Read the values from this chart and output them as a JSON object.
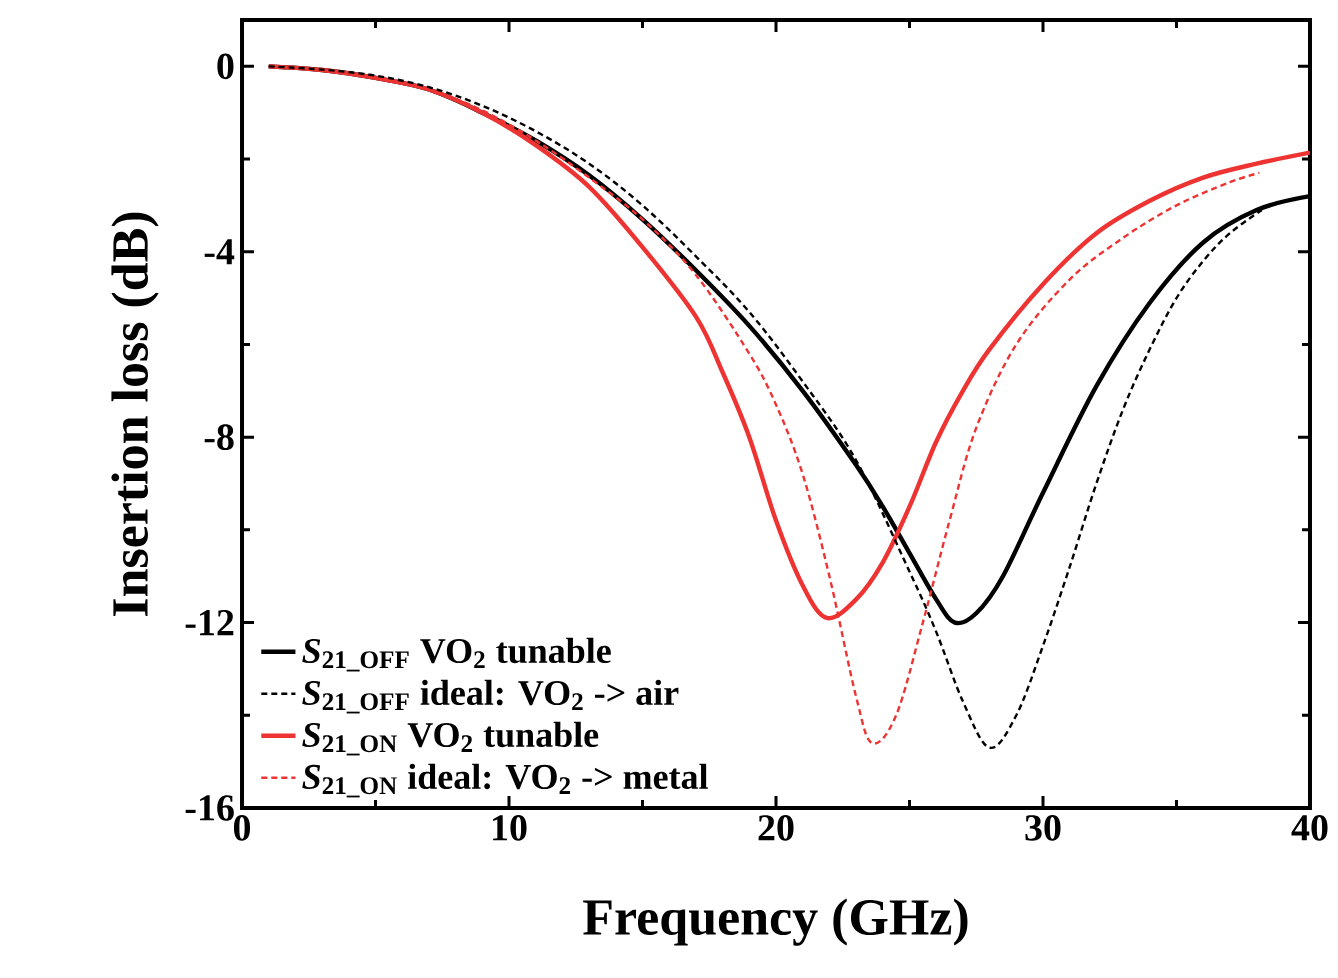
{
  "chart_data": {
    "type": "line",
    "xlabel": "Frequency (GHz)",
    "ylabel": "Insertion loss (dB)",
    "xlim": [
      0,
      40
    ],
    "ylim": [
      -16,
      1
    ],
    "xticks": [
      0,
      10,
      20,
      30,
      40
    ],
    "yticks": [
      -16,
      -12,
      -8,
      -4,
      0
    ],
    "legend": "bottom left",
    "series": [
      {
        "name": "*S*$_{21_OFF}$ VO$_{2}$ tunable",
        "color": "#000000",
        "line_style": "solid",
        "x": [
          1,
          3,
          5,
          7,
          9,
          11,
          13,
          15,
          17,
          19,
          21,
          23,
          24,
          25,
          26,
          26.7,
          27.5,
          28.5,
          30,
          32,
          34,
          36,
          38,
          40
        ],
        "values": [
          0,
          -0.08,
          -0.25,
          -0.5,
          -1.0,
          -1.6,
          -2.35,
          -3.3,
          -4.4,
          -5.6,
          -7.0,
          -8.6,
          -9.5,
          -10.5,
          -11.5,
          -12.0,
          -11.8,
          -11.0,
          -9.2,
          -6.9,
          -5.1,
          -3.8,
          -3.1,
          -2.8
        ]
      },
      {
        "name": "*S*$_{21_OFF}$ ideal: VO$_{2}$ -> air",
        "color": "#000000",
        "line_style": "dashed",
        "x": [
          1,
          3,
          5,
          7,
          9,
          11,
          13,
          15,
          17,
          19,
          21,
          23,
          25,
          26,
          27,
          28,
          29,
          30,
          31,
          32,
          33,
          34,
          35,
          36,
          37,
          38.2
        ],
        "values": [
          0,
          -0.07,
          -0.2,
          -0.45,
          -0.85,
          -1.4,
          -2.1,
          -3.0,
          -4.1,
          -5.3,
          -6.8,
          -8.5,
          -10.9,
          -12.2,
          -13.7,
          -14.7,
          -14.0,
          -12.5,
          -10.8,
          -9.0,
          -7.4,
          -6.1,
          -5.0,
          -4.2,
          -3.6,
          -3.1
        ]
      },
      {
        "name": "*S*$_{21_ON}$ VO$_{2}$ tunable",
        "color": "#ee3333",
        "line_style": "solid",
        "x": [
          1,
          3,
          5,
          7,
          9,
          11,
          13,
          15,
          17,
          18,
          19,
          20,
          21,
          21.9,
          23,
          24,
          25,
          26,
          27,
          28,
          30,
          32,
          34,
          36,
          38,
          40
        ],
        "values": [
          0,
          -0.08,
          -0.25,
          -0.5,
          -1.0,
          -1.7,
          -2.6,
          -3.9,
          -5.4,
          -6.6,
          -8.0,
          -9.8,
          -11.2,
          -11.9,
          -11.5,
          -10.7,
          -9.5,
          -8.1,
          -7.0,
          -6.1,
          -4.7,
          -3.6,
          -2.9,
          -2.4,
          -2.1,
          -1.86
        ]
      },
      {
        "name": "*S*$_{21_ON}$ ideal: VO$_{2}$ -> metal",
        "color": "#ee3333",
        "line_style": "dashed",
        "x": [
          1,
          3,
          5,
          7,
          9,
          11,
          13,
          15,
          17,
          19,
          20,
          21,
          22,
          23,
          23.6,
          24.5,
          25.5,
          26.5,
          27.5,
          29,
          31,
          33,
          35,
          37,
          38.1
        ],
        "values": [
          0,
          -0.08,
          -0.25,
          -0.5,
          -0.95,
          -1.6,
          -2.4,
          -3.3,
          -4.5,
          -6.2,
          -7.3,
          -8.8,
          -11.0,
          -13.6,
          -14.6,
          -14.0,
          -12.0,
          -9.8,
          -7.8,
          -6.0,
          -4.6,
          -3.7,
          -3.0,
          -2.5,
          -2.3
        ]
      }
    ]
  }
}
